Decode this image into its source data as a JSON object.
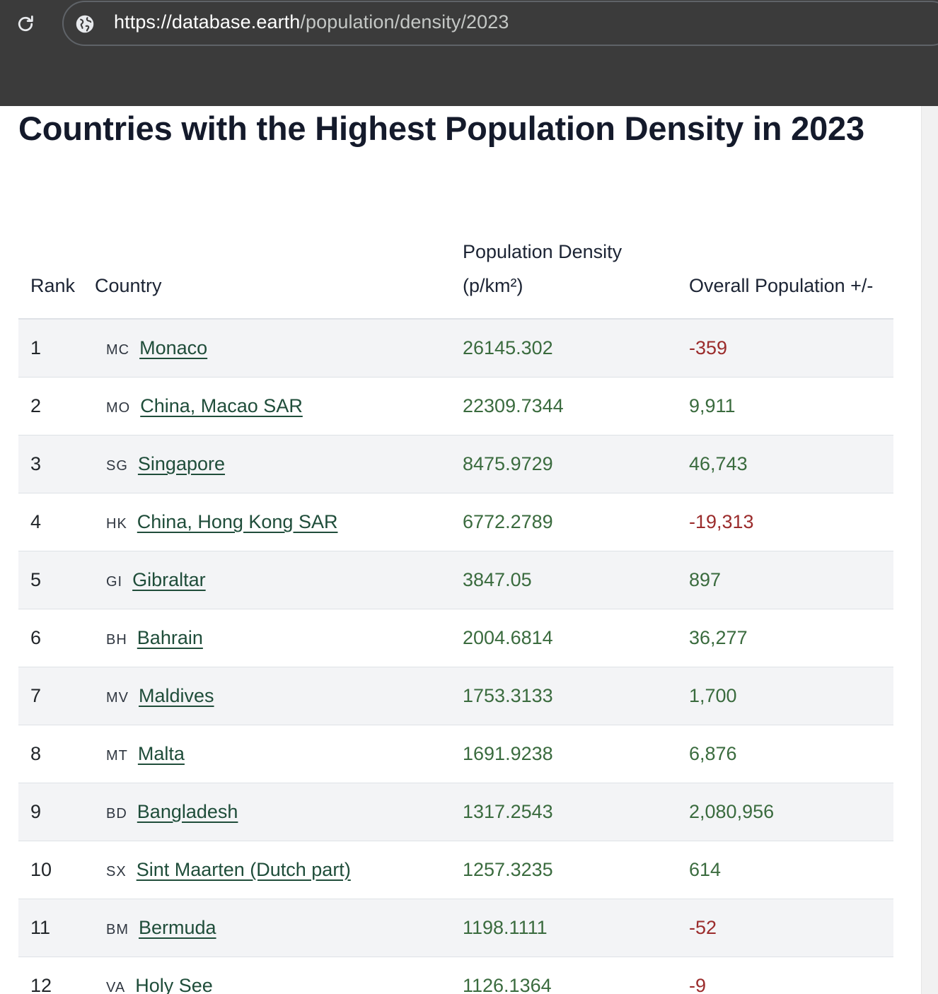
{
  "browser": {
    "url_host": "https://database.earth",
    "url_path": "/population/density/2023"
  },
  "page": {
    "title": "Countries with the Highest Population Density in 2023"
  },
  "table": {
    "headers": {
      "rank": "Rank",
      "country": "Country",
      "density_line1": "Population Density",
      "density_line2": "(p/km²)",
      "change": "Overall Population +/-"
    },
    "rows": [
      {
        "rank": "1",
        "code": "MC",
        "country": "Monaco",
        "density": "26145.302",
        "change": "-359",
        "sign": "neg"
      },
      {
        "rank": "2",
        "code": "MO",
        "country": "China, Macao SAR",
        "density": "22309.7344",
        "change": "9,911",
        "sign": "pos"
      },
      {
        "rank": "3",
        "code": "SG",
        "country": "Singapore",
        "density": "8475.9729",
        "change": "46,743",
        "sign": "pos"
      },
      {
        "rank": "4",
        "code": "HK",
        "country": "China, Hong Kong SAR",
        "density": "6772.2789",
        "change": "-19,313",
        "sign": "neg"
      },
      {
        "rank": "5",
        "code": "GI",
        "country": "Gibraltar",
        "density": "3847.05",
        "change": "897",
        "sign": "pos"
      },
      {
        "rank": "6",
        "code": "BH",
        "country": "Bahrain",
        "density": "2004.6814",
        "change": "36,277",
        "sign": "pos"
      },
      {
        "rank": "7",
        "code": "MV",
        "country": "Maldives",
        "density": "1753.3133",
        "change": "1,700",
        "sign": "pos"
      },
      {
        "rank": "8",
        "code": "MT",
        "country": "Malta",
        "density": "1691.9238",
        "change": "6,876",
        "sign": "pos"
      },
      {
        "rank": "9",
        "code": "BD",
        "country": "Bangladesh",
        "density": "1317.2543",
        "change": "2,080,956",
        "sign": "pos"
      },
      {
        "rank": "10",
        "code": "SX",
        "country": "Sint Maarten (Dutch part)",
        "density": "1257.3235",
        "change": "614",
        "sign": "pos"
      },
      {
        "rank": "11",
        "code": "BM",
        "country": "Bermuda",
        "density": "1198.1111",
        "change": "-52",
        "sign": "neg"
      },
      {
        "rank": "12",
        "code": "VA",
        "country": "Holy See",
        "density": "1126.1364",
        "change": "-9",
        "sign": "neg"
      }
    ]
  }
}
